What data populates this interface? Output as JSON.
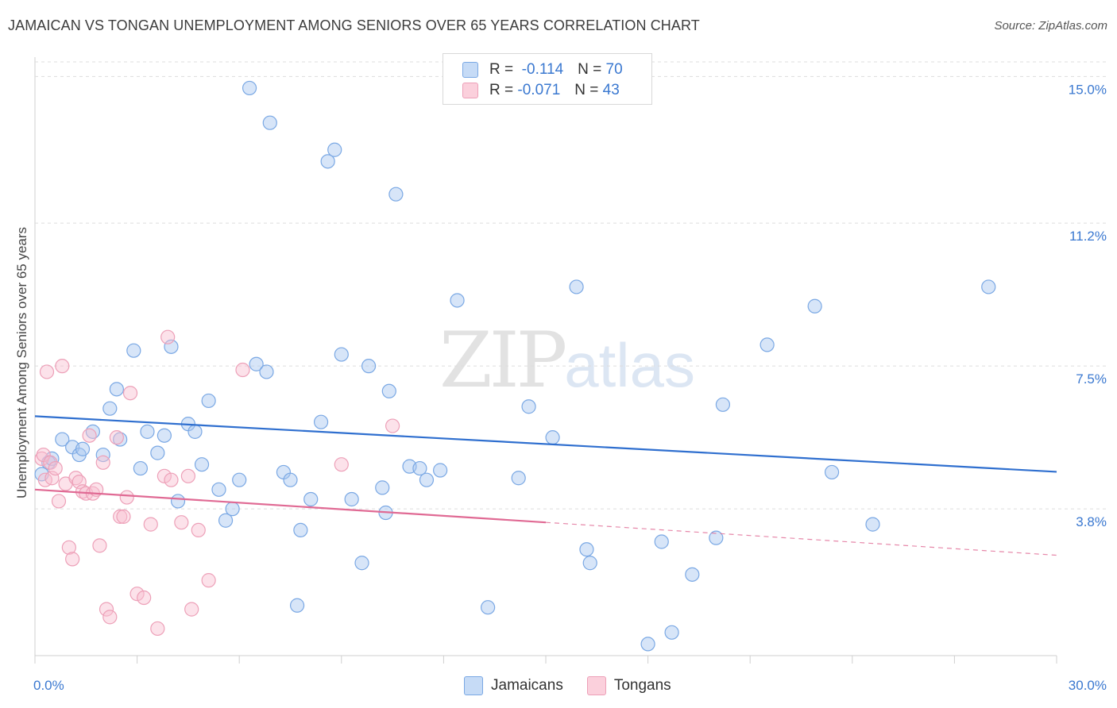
{
  "title": "JAMAICAN VS TONGAN UNEMPLOYMENT AMONG SENIORS OVER 65 YEARS CORRELATION CHART",
  "source": "Source: ZipAtlas.com",
  "watermark": {
    "zip": "ZIP",
    "atlas": "atlas"
  },
  "legend_stats": [
    {
      "r_label": "R =",
      "r_value": "-0.114",
      "n_label": "N =",
      "n_value": "70",
      "color": "#a8c8f0",
      "stroke": "#6a9ee0"
    },
    {
      "r_label": "R =",
      "r_value": "-0.071",
      "n_label": "N =",
      "n_value": "43",
      "color": "#f8c0d0",
      "stroke": "#e890a8"
    }
  ],
  "chart_data": {
    "type": "scatter",
    "xlabel": "",
    "ylabel": "Unemployment Among Seniors over 65 years",
    "xlim": [
      0,
      30
    ],
    "ylim": [
      0,
      15.5
    ],
    "x_tick_labels": [
      "0.0%",
      "30.0%"
    ],
    "y_ticks": [
      3.8,
      7.5,
      11.2,
      15.0
    ],
    "y_tick_labels": [
      "3.8%",
      "7.5%",
      "11.2%",
      "15.0%"
    ],
    "colors": {
      "jamaicans": "#3a78d0",
      "tongans": "#e8709a"
    },
    "series": [
      {
        "name": "Jamaicans",
        "trend": {
          "x0": 0,
          "y0": 6.2,
          "x1": 30,
          "y1": 4.76
        },
        "points": [
          [
            0.2,
            4.7
          ],
          [
            0.4,
            5.0
          ],
          [
            0.5,
            5.1
          ],
          [
            0.8,
            5.6
          ],
          [
            1.1,
            5.4
          ],
          [
            1.3,
            5.2
          ],
          [
            1.4,
            5.35
          ],
          [
            1.7,
            5.8
          ],
          [
            2.0,
            5.2
          ],
          [
            2.2,
            6.4
          ],
          [
            2.4,
            6.9
          ],
          [
            2.5,
            5.6
          ],
          [
            2.9,
            7.9
          ],
          [
            3.1,
            4.85
          ],
          [
            3.3,
            5.8
          ],
          [
            3.6,
            5.25
          ],
          [
            3.8,
            5.7
          ],
          [
            4.0,
            8.0
          ],
          [
            4.2,
            4.0
          ],
          [
            4.5,
            6.0
          ],
          [
            4.7,
            5.8
          ],
          [
            4.9,
            4.95
          ],
          [
            5.1,
            6.6
          ],
          [
            5.4,
            4.3
          ],
          [
            5.6,
            3.5
          ],
          [
            5.8,
            3.8
          ],
          [
            6.0,
            4.55
          ],
          [
            6.3,
            14.7
          ],
          [
            6.5,
            7.55
          ],
          [
            6.8,
            7.35
          ],
          [
            6.9,
            13.8
          ],
          [
            7.3,
            4.75
          ],
          [
            7.5,
            4.55
          ],
          [
            7.7,
            1.3
          ],
          [
            7.8,
            3.25
          ],
          [
            8.1,
            4.05
          ],
          [
            8.4,
            6.05
          ],
          [
            8.6,
            12.8
          ],
          [
            8.8,
            13.1
          ],
          [
            9.0,
            7.8
          ],
          [
            9.3,
            4.05
          ],
          [
            9.6,
            2.4
          ],
          [
            9.8,
            7.5
          ],
          [
            10.2,
            4.35
          ],
          [
            10.3,
            3.7
          ],
          [
            10.4,
            6.85
          ],
          [
            10.6,
            11.95
          ],
          [
            11.0,
            4.9
          ],
          [
            11.3,
            4.85
          ],
          [
            11.5,
            4.55
          ],
          [
            11.9,
            4.8
          ],
          [
            12.4,
            9.2
          ],
          [
            13.3,
            1.25
          ],
          [
            14.2,
            4.6
          ],
          [
            14.5,
            6.45
          ],
          [
            15.2,
            5.65
          ],
          [
            15.9,
            9.55
          ],
          [
            16.2,
            2.75
          ],
          [
            16.3,
            2.4
          ],
          [
            18.0,
            0.3
          ],
          [
            18.7,
            0.6
          ],
          [
            18.4,
            2.95
          ],
          [
            19.3,
            2.1
          ],
          [
            20.0,
            3.05
          ],
          [
            20.2,
            6.5
          ],
          [
            21.5,
            8.05
          ],
          [
            22.9,
            9.05
          ],
          [
            23.4,
            4.75
          ],
          [
            24.6,
            3.4
          ],
          [
            28.0,
            9.55
          ]
        ]
      },
      {
        "name": "Tongans",
        "trend": {
          "x0": 0,
          "y0": 4.3,
          "x1": 15,
          "y1": 3.45,
          "x_dash_end": 30,
          "y_dash_end": 2.6
        },
        "points": [
          [
            0.2,
            5.1
          ],
          [
            0.25,
            5.2
          ],
          [
            0.3,
            4.55
          ],
          [
            0.45,
            5.0
          ],
          [
            0.5,
            4.6
          ],
          [
            0.6,
            4.85
          ],
          [
            0.7,
            4.0
          ],
          [
            0.8,
            7.5
          ],
          [
            0.9,
            4.45
          ],
          [
            1.0,
            2.8
          ],
          [
            1.1,
            2.5
          ],
          [
            1.2,
            4.6
          ],
          [
            1.3,
            4.5
          ],
          [
            1.4,
            4.25
          ],
          [
            1.5,
            4.2
          ],
          [
            1.6,
            5.7
          ],
          [
            1.7,
            4.2
          ],
          [
            1.8,
            4.3
          ],
          [
            1.9,
            2.85
          ],
          [
            2.0,
            5.0
          ],
          [
            2.1,
            1.2
          ],
          [
            2.2,
            1.0
          ],
          [
            2.4,
            5.65
          ],
          [
            2.5,
            3.6
          ],
          [
            2.6,
            3.6
          ],
          [
            2.7,
            4.1
          ],
          [
            2.8,
            6.8
          ],
          [
            3.0,
            1.6
          ],
          [
            3.2,
            1.5
          ],
          [
            3.4,
            3.4
          ],
          [
            3.6,
            0.7
          ],
          [
            3.8,
            4.65
          ],
          [
            3.9,
            8.25
          ],
          [
            4.0,
            4.55
          ],
          [
            4.3,
            3.45
          ],
          [
            4.5,
            4.65
          ],
          [
            4.6,
            1.2
          ],
          [
            4.8,
            3.25
          ],
          [
            5.1,
            1.95
          ],
          [
            6.1,
            7.4
          ],
          [
            9.0,
            4.95
          ],
          [
            10.5,
            5.95
          ],
          [
            0.35,
            7.35
          ]
        ]
      }
    ],
    "legend": [
      "Jamaicans",
      "Tongans"
    ]
  }
}
